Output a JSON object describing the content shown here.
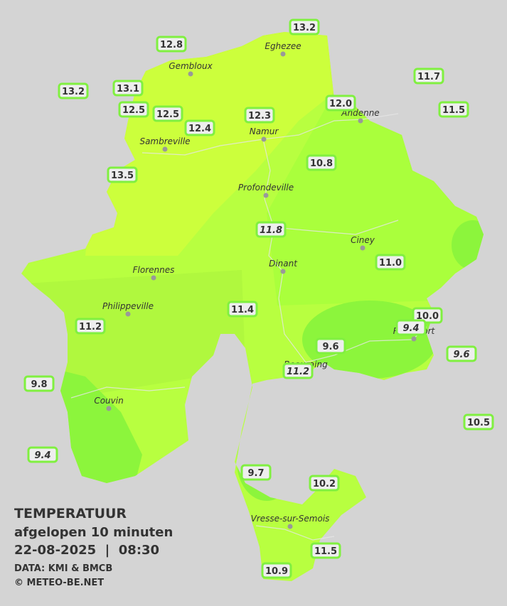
{
  "title": {
    "line1": "TEMPERATUUR",
    "line2": "afgelopen 10 minuten",
    "line3": "22-08-2025  |  08:30",
    "source": "DATA: KMI & BMCB",
    "copyright": "© METEO-BE.NET"
  },
  "cities": [
    "Eghezee",
    "Gembloux",
    "Andenne",
    "Namur",
    "Sambreville",
    "Profondeville",
    "Ciney",
    "Florennes",
    "Dinant",
    "Philippeville",
    "Rochefort",
    "Beauraing",
    "Couvin",
    "Vresse-sur-Semois"
  ],
  "stations": [
    "13.2",
    "12.8",
    "11.7",
    "13.2",
    "13.1",
    "12.0",
    "11.5",
    "12.5",
    "12.5",
    "12.3",
    "12.4",
    "10.8",
    "13.5",
    "11.8",
    "11.0",
    "11.4",
    "10.0",
    "9.4",
    "11.2",
    "9.6",
    "9.6",
    "11.2",
    "9.8",
    "10.5",
    "9.4",
    "9.7",
    "10.2",
    "11.5",
    "10.9"
  ]
}
